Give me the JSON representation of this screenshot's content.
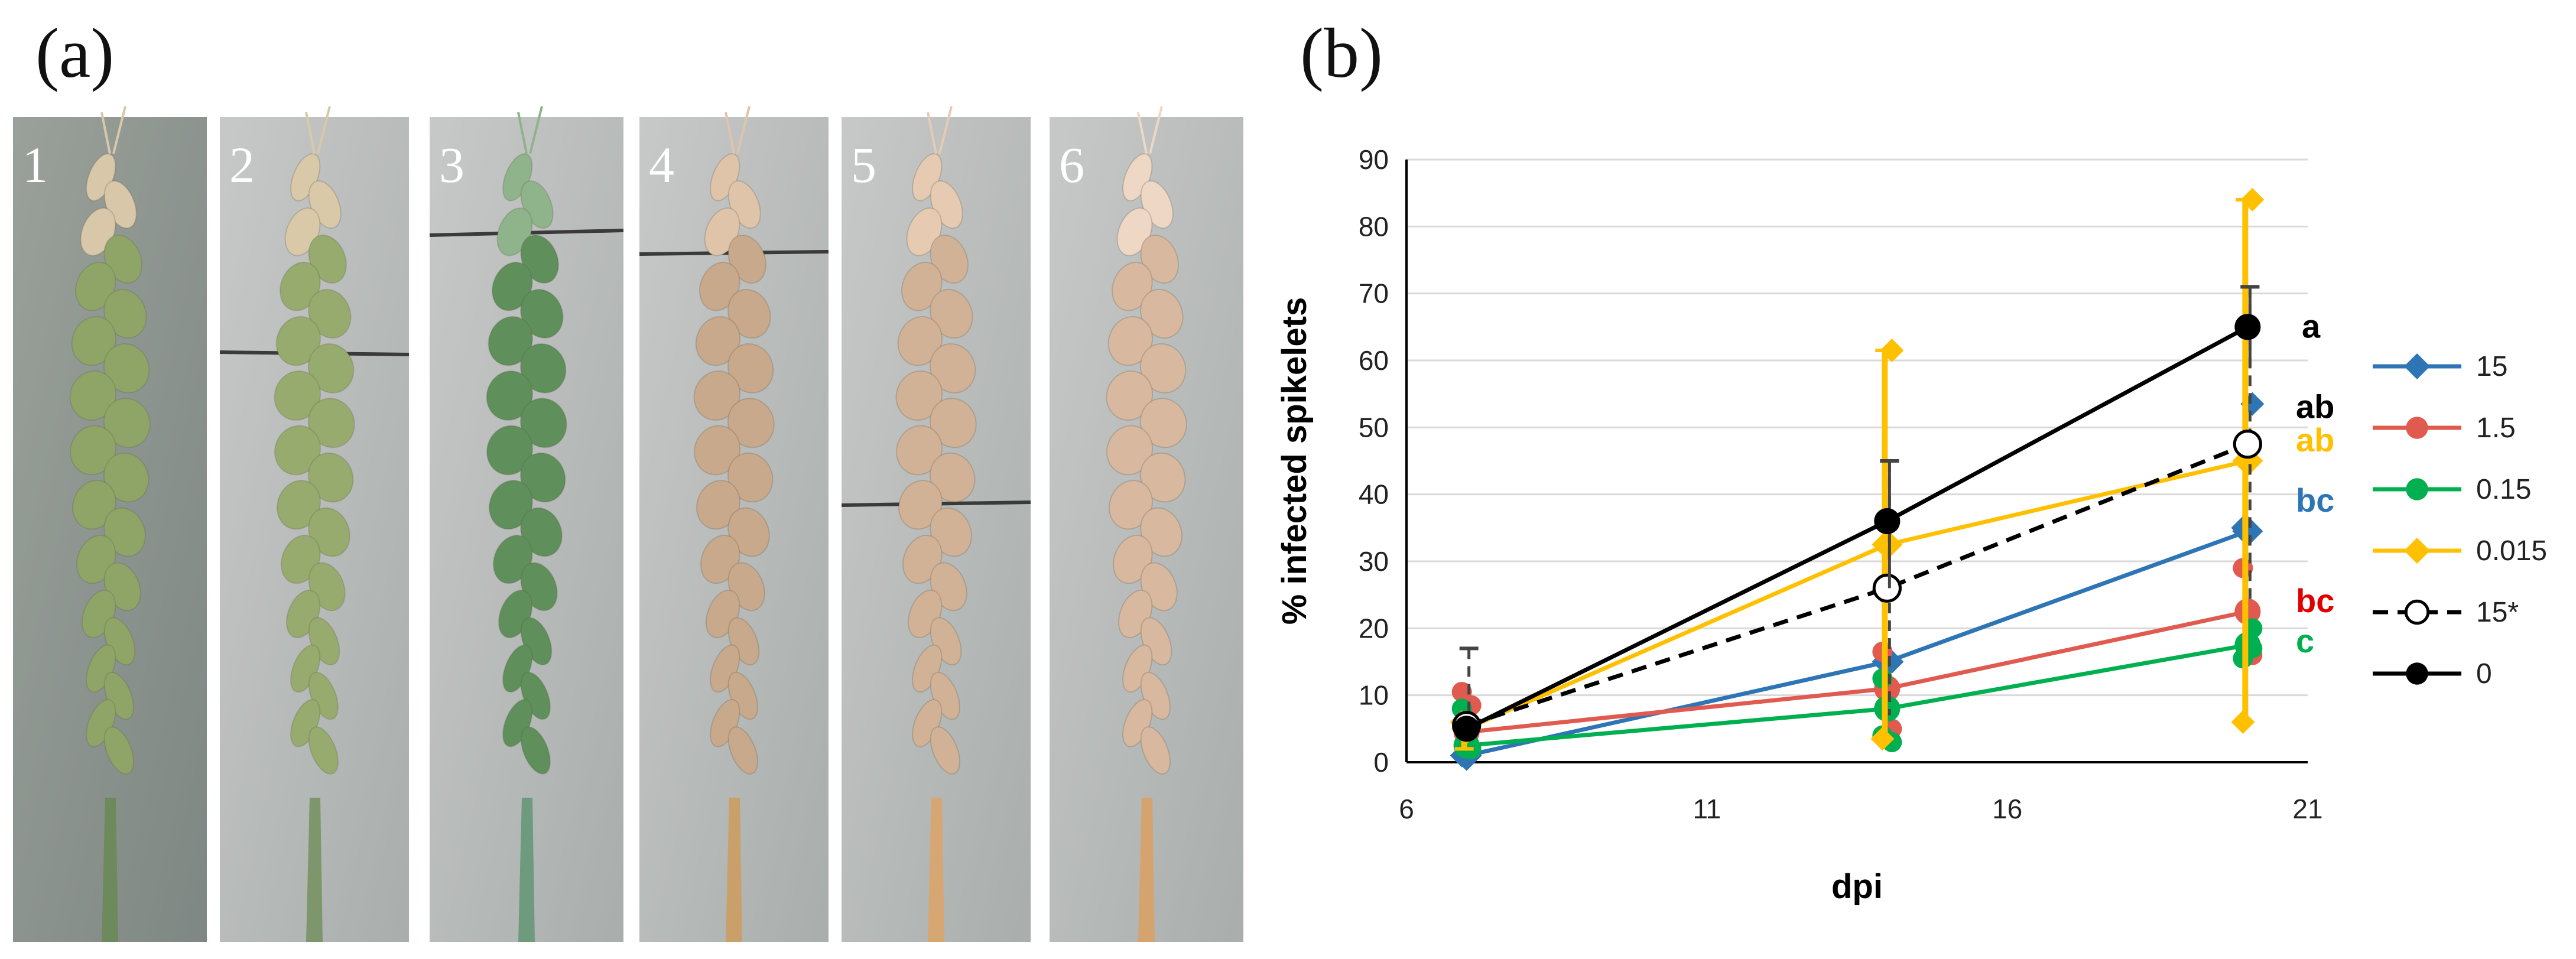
{
  "panels": {
    "a": "(a)",
    "b": "(b)"
  },
  "photo_labels": [
    "1",
    "2",
    "3",
    "4",
    "5",
    "6"
  ],
  "chart_data": {
    "type": "line",
    "xlabel": "dpi",
    "ylabel": "% infected spikelets",
    "xlim": [
      6,
      21
    ],
    "ylim": [
      0,
      90
    ],
    "xticks": [
      6,
      11,
      16,
      21
    ],
    "yticks": [
      0,
      10,
      20,
      30,
      40,
      50,
      60,
      70,
      80,
      90
    ],
    "grid": true,
    "legend_position": "right",
    "series": [
      {
        "name": "15",
        "color": "#2e75b6",
        "marker": "diamond",
        "dash": false,
        "x": [
          7,
          14,
          20
        ],
        "values": [
          1,
          15,
          34.5
        ],
        "points": [
          [
            7,
            1
          ],
          [
            14,
            15
          ],
          [
            20,
            35
          ],
          [
            20,
            53.5
          ],
          [
            14,
            25.5
          ]
        ]
      },
      {
        "name": "1.5",
        "color": "#e05a4f",
        "marker": "circle",
        "dash": false,
        "x": [
          7,
          14,
          20
        ],
        "values": [
          4.5,
          11,
          22.5
        ],
        "points": [
          [
            7,
            10.5
          ],
          [
            7,
            8.5
          ],
          [
            14,
            16.5
          ],
          [
            14,
            5
          ],
          [
            20,
            29
          ],
          [
            20,
            16
          ]
        ]
      },
      {
        "name": "0.15",
        "color": "#00b050",
        "marker": "circle",
        "dash": false,
        "x": [
          7,
          14,
          20
        ],
        "values": [
          2.5,
          8,
          17.5
        ],
        "points": [
          [
            7,
            8
          ],
          [
            7,
            2
          ],
          [
            14,
            12.5
          ],
          [
            14,
            3
          ],
          [
            14,
            4
          ],
          [
            20,
            20
          ],
          [
            20,
            15.5
          ],
          [
            20,
            17
          ]
        ]
      },
      {
        "name": "0.015",
        "color": "#ffc000",
        "marker": "diamond",
        "dash": false,
        "x": [
          7,
          14,
          20
        ],
        "values": [
          5,
          32.5,
          45
        ],
        "points": [
          [
            7,
            6
          ],
          [
            14,
            61.5
          ],
          [
            14,
            3.5
          ],
          [
            20,
            84
          ],
          [
            20,
            6
          ]
        ],
        "error_upper": [
          2,
          61.5,
          84
        ],
        "error_lower": [
          5,
          3.5,
          6
        ]
      },
      {
        "name": "15*",
        "color": "#000000",
        "marker": "open-circle",
        "dash": true,
        "x": [
          7,
          14,
          20
        ],
        "values": [
          5.5,
          26,
          47.5
        ],
        "error_upper": [
          17,
          45,
          71
        ],
        "error_lower": [
          5.5,
          7,
          24
        ]
      },
      {
        "name": "0",
        "color": "#000000",
        "marker": "circle",
        "dash": false,
        "x": [
          7,
          14,
          20
        ],
        "values": [
          5,
          36,
          65
        ],
        "error_upper": [
          6,
          45,
          71
        ],
        "error_lower": [
          4,
          26,
          59
        ]
      }
    ],
    "annotations": [
      {
        "text": "a",
        "x": 20,
        "y": 65,
        "color": "#000000"
      },
      {
        "text": "ab",
        "x": 20,
        "y": 53,
        "color": "#000000"
      },
      {
        "text": "ab",
        "x": 20,
        "y": 48,
        "color": "#ffc000"
      },
      {
        "text": "bc",
        "x": 20,
        "y": 39,
        "color": "#2e75b6"
      },
      {
        "text": "bc",
        "x": 20,
        "y": 24,
        "color": "#e00000"
      },
      {
        "text": "c",
        "x": 20,
        "y": 18,
        "color": "#00b050"
      }
    ]
  }
}
